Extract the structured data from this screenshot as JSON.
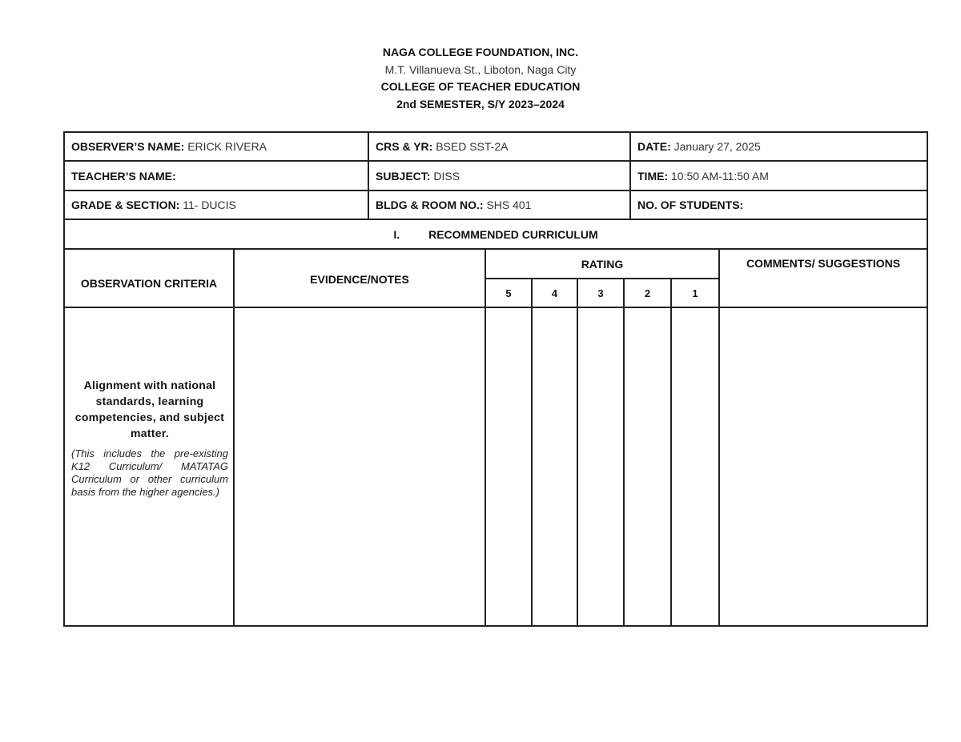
{
  "header": {
    "institution": "NAGA COLLEGE FOUNDATION, INC.",
    "address": "M.T. Villanueva St., Liboton, Naga City",
    "college": "COLLEGE OF TEACHER EDUCATION",
    "semester": "2nd SEMESTER, S/Y 2023–2024"
  },
  "info": {
    "observer": {
      "label": "OBSERVER’S NAME:",
      "value": "ERICK RIVERA"
    },
    "course": {
      "label": "CRS & YR:",
      "value": "BSED SST-2A"
    },
    "date": {
      "label": "DATE:",
      "value": "January 27, 2025"
    },
    "teacher": {
      "label": "TEACHER’S NAME:",
      "value": ""
    },
    "subject": {
      "label": "SUBJECT:",
      "value": "DISS"
    },
    "time": {
      "label": "TIME:",
      "value": "10:50 AM-11:50 AM"
    },
    "grade": {
      "label": "GRADE & SECTION:",
      "value": "11- DUCIS"
    },
    "room": {
      "label": "BLDG & ROOM NO.:",
      "value": "SHS 401"
    },
    "students": {
      "label": "NO. OF STUDENTS:",
      "value": ""
    }
  },
  "section": {
    "number": "I.",
    "title": "RECOMMENDED CURRICULUM"
  },
  "columns": {
    "criteria": "OBSERVATION CRITERIA",
    "evidence": "EVIDENCE/NOTES",
    "rating": "RATING",
    "ratings": [
      "5",
      "4",
      "3",
      "2",
      "1"
    ],
    "comments": "COMMENTS/ SUGGESTIONS"
  },
  "rows": [
    {
      "criterion": "Alignment with national standards, learning competencies, and subject matter.",
      "note": "(This includes the pre-existing K12 Curriculum/ MATATAG Curriculum or other curriculum basis from the higher agencies.)"
    }
  ]
}
